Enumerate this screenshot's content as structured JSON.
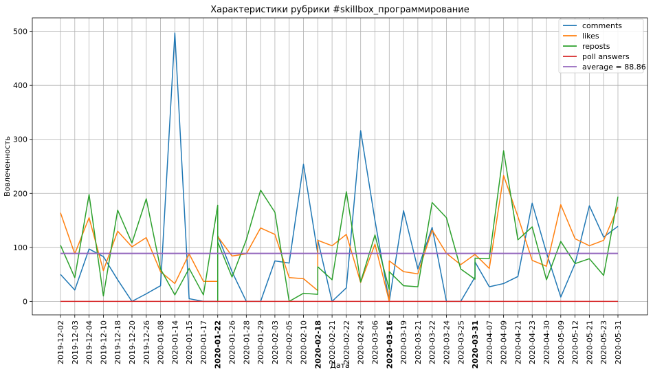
{
  "chart_data": {
    "type": "line",
    "title": "Характеристики рубрики #skillbox_программирование",
    "xlabel": "Дата",
    "ylabel": "Вовлеченность",
    "ylim": [
      -25,
      525
    ],
    "yticks": [
      0,
      100,
      200,
      300,
      400,
      500
    ],
    "grid": true,
    "legend_position": "top-right",
    "categories": [
      "2019-12-02",
      "2019-12-03",
      "2019-12-04",
      "2019-12-10",
      "2019-12-18",
      "2019-12-20",
      "2019-12-26",
      "2020-01-08",
      "2020-01-14",
      "2020-01-15",
      "2020-01-17",
      "2020-01-22",
      "2020-01-26",
      "2020-01-28",
      "2020-01-29",
      "2020-02-03",
      "2020-02-05",
      "2020-02-10",
      "2020-02-18",
      "2020-02-21",
      "2020-02-22",
      "2020-02-24",
      "2020-03-06",
      "2020-03-16",
      "2020-03-19",
      "2020-03-21",
      "2020-03-22",
      "2020-03-24",
      "2020-03-25",
      "2020-03-31",
      "2020-04-07",
      "2020-04-09",
      "2020-04-21",
      "2020-04-23",
      "2020-04-30",
      "2020-05-09",
      "2020-05-12",
      "2020-05-21",
      "2020-05-23",
      "2020-05-31"
    ],
    "bold_categories": [
      "2020-01-22",
      "2020-02-18",
      "2020-03-16",
      "2020-03-31"
    ],
    "series": [
      {
        "name": "comments",
        "color": "#1f77b4",
        "points": [
          [
            "2019-12-02",
            50
          ],
          [
            "2019-12-03",
            21
          ],
          [
            "2019-12-04",
            97
          ],
          [
            "2019-12-10",
            83
          ],
          [
            "2019-12-18",
            40
          ],
          [
            "2019-12-20",
            0
          ],
          [
            "2019-12-26",
            14
          ],
          [
            "2020-01-08",
            29
          ],
          [
            "2020-01-14",
            497
          ],
          [
            "2020-01-15",
            5
          ],
          [
            "2020-01-17",
            0
          ],
          [
            "2020-01-22",
            0
          ],
          [
            "2020-01-22",
            55
          ],
          [
            "2020-01-22",
            122
          ],
          [
            "2020-01-26",
            55
          ],
          [
            "2020-01-28",
            0
          ],
          [
            "2020-01-29",
            0
          ],
          [
            "2020-02-03",
            75
          ],
          [
            "2020-02-05",
            71
          ],
          [
            "2020-02-10",
            254
          ],
          [
            "2020-02-18",
            88
          ],
          [
            "2020-02-18",
            114
          ],
          [
            "2020-02-21",
            0
          ],
          [
            "2020-02-22",
            25
          ],
          [
            "2020-02-24",
            316
          ],
          [
            "2020-03-06",
            150
          ],
          [
            "2020-03-16",
            0
          ],
          [
            "2020-03-19",
            168
          ],
          [
            "2020-03-21",
            60
          ],
          [
            "2020-03-22",
            137
          ],
          [
            "2020-03-24",
            0
          ],
          [
            "2020-03-25",
            0
          ],
          [
            "2020-03-31",
            45
          ],
          [
            "2020-03-31",
            73
          ],
          [
            "2020-04-07",
            27
          ],
          [
            "2020-04-09",
            33
          ],
          [
            "2020-04-21",
            46
          ],
          [
            "2020-04-23",
            182
          ],
          [
            "2020-04-30",
            90
          ],
          [
            "2020-05-09",
            8
          ],
          [
            "2020-05-12",
            70
          ],
          [
            "2020-05-21",
            177
          ],
          [
            "2020-05-23",
            119
          ],
          [
            "2020-05-31",
            139
          ]
        ]
      },
      {
        "name": "likes",
        "color": "#ff7f0e",
        "points": [
          [
            "2019-12-02",
            164
          ],
          [
            "2019-12-03",
            88
          ],
          [
            "2019-12-04",
            155
          ],
          [
            "2019-12-10",
            57
          ],
          [
            "2019-12-18",
            130
          ],
          [
            "2019-12-20",
            101
          ],
          [
            "2019-12-26",
            118
          ],
          [
            "2020-01-08",
            55
          ],
          [
            "2020-01-14",
            33
          ],
          [
            "2020-01-15",
            88
          ],
          [
            "2020-01-17",
            37
          ],
          [
            "2020-01-22",
            37
          ],
          [
            "2020-01-22",
            120
          ],
          [
            "2020-01-26",
            84
          ],
          [
            "2020-01-28",
            88
          ],
          [
            "2020-01-29",
            136
          ],
          [
            "2020-02-03",
            124
          ],
          [
            "2020-02-05",
            44
          ],
          [
            "2020-02-10",
            42
          ],
          [
            "2020-02-18",
            20
          ],
          [
            "2020-02-18",
            113
          ],
          [
            "2020-02-21",
            103
          ],
          [
            "2020-02-22",
            124
          ],
          [
            "2020-02-24",
            35
          ],
          [
            "2020-03-06",
            106
          ],
          [
            "2020-03-16",
            0
          ],
          [
            "2020-03-16",
            75
          ],
          [
            "2020-03-19",
            55
          ],
          [
            "2020-03-21",
            51
          ],
          [
            "2020-03-22",
            132
          ],
          [
            "2020-03-24",
            89
          ],
          [
            "2020-03-25",
            68
          ],
          [
            "2020-03-31",
            87
          ],
          [
            "2020-04-07",
            61
          ],
          [
            "2020-04-09",
            233
          ],
          [
            "2020-04-21",
            157
          ],
          [
            "2020-04-23",
            76
          ],
          [
            "2020-04-30",
            65
          ],
          [
            "2020-05-09",
            179
          ],
          [
            "2020-05-12",
            116
          ],
          [
            "2020-05-21",
            103
          ],
          [
            "2020-05-23",
            113
          ],
          [
            "2020-05-31",
            175
          ]
        ]
      },
      {
        "name": "reposts",
        "color": "#2ca02c",
        "points": [
          [
            "2019-12-02",
            104
          ],
          [
            "2019-12-03",
            44
          ],
          [
            "2019-12-04",
            198
          ],
          [
            "2019-12-10",
            10
          ],
          [
            "2019-12-18",
            169
          ],
          [
            "2019-12-20",
            108
          ],
          [
            "2019-12-26",
            190
          ],
          [
            "2020-01-08",
            60
          ],
          [
            "2020-01-14",
            12
          ],
          [
            "2020-01-15",
            61
          ],
          [
            "2020-01-17",
            12
          ],
          [
            "2020-01-22",
            178
          ],
          [
            "2020-01-22",
            0
          ],
          [
            "2020-01-22",
            110
          ],
          [
            "2020-01-26",
            45
          ],
          [
            "2020-01-28",
            114
          ],
          [
            "2020-01-29",
            206
          ],
          [
            "2020-02-03",
            165
          ],
          [
            "2020-02-05",
            0
          ],
          [
            "2020-02-10",
            15
          ],
          [
            "2020-02-18",
            13
          ],
          [
            "2020-02-18",
            64
          ],
          [
            "2020-02-21",
            40
          ],
          [
            "2020-02-22",
            203
          ],
          [
            "2020-02-24",
            36
          ],
          [
            "2020-03-06",
            123
          ],
          [
            "2020-03-16",
            22
          ],
          [
            "2020-03-16",
            55
          ],
          [
            "2020-03-19",
            29
          ],
          [
            "2020-03-21",
            27
          ],
          [
            "2020-03-22",
            183
          ],
          [
            "2020-03-24",
            155
          ],
          [
            "2020-03-25",
            60
          ],
          [
            "2020-03-31",
            41
          ],
          [
            "2020-03-31",
            80
          ],
          [
            "2020-04-07",
            79
          ],
          [
            "2020-04-09",
            279
          ],
          [
            "2020-04-21",
            114
          ],
          [
            "2020-04-23",
            138
          ],
          [
            "2020-04-30",
            40
          ],
          [
            "2020-05-09",
            111
          ],
          [
            "2020-05-12",
            70
          ],
          [
            "2020-05-21",
            79
          ],
          [
            "2020-05-23",
            48
          ],
          [
            "2020-05-31",
            194
          ]
        ]
      },
      {
        "name": "poll answers",
        "color": "#d62728",
        "points": [
          [
            "2019-12-02",
            0
          ],
          [
            "2020-05-31",
            0
          ]
        ]
      },
      {
        "name": "average = 88.86",
        "color": "#9467bd",
        "points": [
          [
            "2019-12-02",
            88.86
          ],
          [
            "2020-05-31",
            88.86
          ]
        ]
      }
    ]
  }
}
